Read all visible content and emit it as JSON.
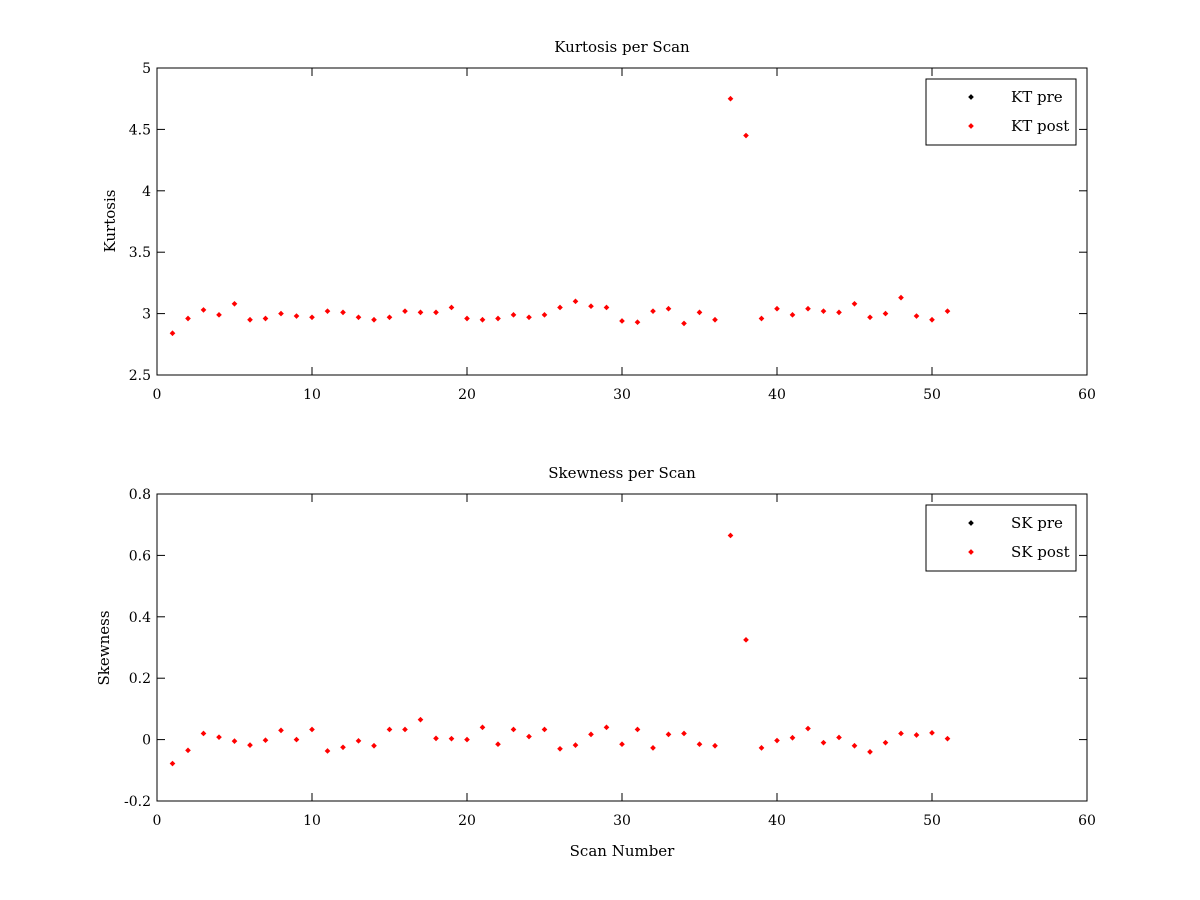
{
  "chart_data": [
    {
      "type": "scatter",
      "title": "Kurtosis per Scan",
      "xlabel": "",
      "ylabel": "Kurtosis",
      "xlim": [
        0,
        60
      ],
      "ylim": [
        2.5,
        5
      ],
      "xticks": [
        0,
        10,
        20,
        30,
        40,
        50,
        60
      ],
      "yticks": [
        2.5,
        3,
        3.5,
        4,
        4.5,
        5
      ],
      "ytick_labels": [
        "2.5",
        "3",
        "3.5",
        "4",
        "4.5",
        "5"
      ],
      "grid": false,
      "legend_position": "top-right",
      "series": [
        {
          "name": "KT pre",
          "color": "#000000",
          "x": [],
          "values": []
        },
        {
          "name": "KT post",
          "color": "#ff0000",
          "x": [
            1,
            2,
            3,
            4,
            5,
            6,
            7,
            8,
            9,
            10,
            11,
            12,
            13,
            14,
            15,
            16,
            17,
            18,
            19,
            20,
            21,
            22,
            23,
            24,
            25,
            26,
            27,
            28,
            29,
            30,
            31,
            32,
            33,
            34,
            35,
            36,
            37,
            38,
            39,
            40,
            41,
            42,
            43,
            44,
            45,
            46,
            47,
            48,
            49,
            50,
            51
          ],
          "values": [
            2.84,
            2.96,
            3.03,
            2.99,
            3.08,
            2.95,
            2.96,
            3.0,
            2.98,
            2.97,
            3.02,
            3.01,
            2.97,
            2.95,
            2.97,
            3.02,
            3.01,
            3.01,
            3.05,
            2.96,
            2.95,
            2.96,
            2.99,
            2.97,
            2.99,
            3.05,
            3.1,
            3.06,
            3.05,
            2.94,
            2.93,
            3.02,
            3.04,
            2.92,
            3.01,
            2.95,
            4.75,
            4.45,
            2.96,
            3.04,
            2.99,
            3.04,
            3.02,
            3.01,
            3.08,
            2.97,
            3.0,
            3.13,
            2.98,
            2.95,
            3.02
          ]
        }
      ]
    },
    {
      "type": "scatter",
      "title": "Skewness per Scan",
      "xlabel": "Scan Number",
      "ylabel": "Skewness",
      "xlim": [
        0,
        60
      ],
      "ylim": [
        -0.2,
        0.8
      ],
      "xticks": [
        0,
        10,
        20,
        30,
        40,
        50,
        60
      ],
      "yticks": [
        -0.2,
        0,
        0.2,
        0.4,
        0.6,
        0.8
      ],
      "ytick_labels": [
        "-0.2",
        "0",
        "0.2",
        "0.4",
        "0.6",
        "0.8"
      ],
      "grid": false,
      "legend_position": "top-right",
      "series": [
        {
          "name": "SK pre",
          "color": "#000000",
          "x": [],
          "values": []
        },
        {
          "name": "SK post",
          "color": "#ff0000",
          "x": [
            1,
            2,
            3,
            4,
            5,
            6,
            7,
            8,
            9,
            10,
            11,
            12,
            13,
            14,
            15,
            16,
            17,
            18,
            19,
            20,
            21,
            22,
            23,
            24,
            25,
            26,
            27,
            28,
            29,
            30,
            31,
            32,
            33,
            34,
            35,
            36,
            37,
            38,
            39,
            40,
            41,
            42,
            43,
            44,
            45,
            46,
            47,
            48,
            49,
            50,
            51
          ],
          "values": [
            -0.078,
            -0.035,
            0.02,
            0.008,
            -0.005,
            -0.018,
            -0.002,
            0.03,
            0.0,
            0.033,
            -0.037,
            -0.025,
            -0.004,
            -0.02,
            0.033,
            0.033,
            0.065,
            0.004,
            0.003,
            0.0,
            0.04,
            -0.015,
            0.033,
            0.01,
            0.033,
            -0.03,
            -0.018,
            0.017,
            0.04,
            -0.015,
            0.033,
            -0.027,
            0.017,
            0.02,
            -0.015,
            -0.02,
            0.665,
            0.325,
            -0.027,
            -0.003,
            0.006,
            0.036,
            -0.01,
            0.007,
            -0.02,
            -0.04,
            -0.01,
            0.02,
            0.015,
            0.022,
            0.003
          ]
        }
      ]
    }
  ]
}
